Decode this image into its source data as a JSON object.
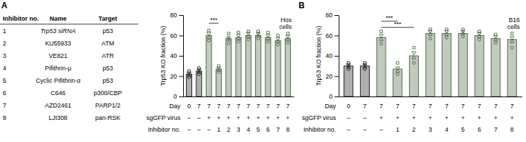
{
  "table": {
    "headers": [
      "Inhibitor no.",
      "Name",
      "Target"
    ],
    "rows": [
      [
        "1",
        "Trp53 siRNA",
        "p53"
      ],
      [
        "2",
        "KU55933",
        "ATM"
      ],
      [
        "3",
        "VE821",
        "ATR"
      ],
      [
        "4",
        "Pifithrin-μ",
        "p53"
      ],
      [
        "5",
        "Cyclic Pifithrin-α",
        "p53"
      ],
      [
        "6",
        "C646",
        "p300/CBP"
      ],
      [
        "7",
        "AZD2461",
        "PARP1/2"
      ],
      [
        "8",
        "LJI308",
        "pan-RSK"
      ]
    ]
  },
  "chart_data": [
    {
      "type": "bar",
      "title": "A",
      "y_label": "Trp53 KO fraction (%)",
      "annotation": "Hox\ncells",
      "values": [
        22,
        25,
        60,
        27,
        57,
        58,
        60,
        60,
        58,
        55,
        57
      ],
      "colors": [
        "#1a1a1a",
        "#1a1a1a",
        "#4a6741",
        "#4a6741",
        "#4a6741",
        "#4a6741",
        "#4a6741",
        "#4a6741",
        "#4a6741",
        "#4a6741",
        "#4a6741"
      ],
      "points": [
        [
          19,
          21,
          23,
          25
        ],
        [
          22,
          24,
          26,
          28
        ],
        [
          55,
          58,
          62,
          65
        ],
        [
          24,
          26,
          28,
          30
        ],
        [
          52,
          56,
          58,
          62
        ],
        [
          54,
          57,
          60,
          63
        ],
        [
          56,
          59,
          62,
          64
        ],
        [
          57,
          60,
          62,
          64
        ],
        [
          54,
          57,
          60,
          63
        ],
        [
          51,
          54,
          57,
          60
        ],
        [
          53,
          56,
          59,
          62
        ]
      ],
      "label_rows": [
        {
          "name": "Day",
          "labels": [
            "0",
            "7",
            "7",
            "7",
            "7",
            "7",
            "7",
            "7",
            "7",
            "7",
            "7"
          ]
        },
        {
          "name": "sgGFP virus",
          "labels": [
            "–",
            "–",
            "+",
            "+",
            "+",
            "+",
            "+",
            "+",
            "+",
            "+",
            "+"
          ]
        },
        {
          "name": "Inhibitor no.",
          "labels": [
            "–",
            "–",
            "–",
            "1",
            "2",
            "3",
            "4",
            "5",
            "6",
            "7",
            "8"
          ]
        }
      ],
      "significance": [
        {
          "x1": 2,
          "x2": 3,
          "y": 72,
          "text": "***"
        }
      ],
      "ylim": [
        0,
        80
      ],
      "yticks": [
        0,
        20,
        40,
        60,
        80
      ],
      "grid": false
    },
    {
      "type": "bar",
      "title": "B",
      "y_label": "Trp53 KO fraction (%)",
      "annotation": "B16\ncells",
      "values": [
        30,
        30,
        58,
        27,
        40,
        62,
        62,
        62,
        60,
        57,
        56
      ],
      "colors": [
        "#1a1a1a",
        "#1a1a1a",
        "#4a6741",
        "#4a6741",
        "#4a6741",
        "#4a6741",
        "#4a6741",
        "#4a6741",
        "#4a6741",
        "#4a6741",
        "#4a6741"
      ],
      "points": [
        [
          27,
          29,
          31,
          33
        ],
        [
          27,
          29,
          31,
          33
        ],
        [
          52,
          56,
          60,
          64
        ],
        [
          22,
          25,
          28,
          33
        ],
        [
          33,
          38,
          43,
          48
        ],
        [
          57,
          61,
          64,
          66
        ],
        [
          58,
          61,
          64,
          66
        ],
        [
          59,
          62,
          64,
          66
        ],
        [
          56,
          59,
          62,
          64
        ],
        [
          53,
          56,
          59,
          61
        ],
        [
          48,
          54,
          58,
          62
        ]
      ],
      "label_rows": [
        {
          "name": "Day",
          "labels": [
            "0",
            "7",
            "7",
            "7",
            "7",
            "7",
            "7",
            "7",
            "7",
            "7",
            "7"
          ]
        },
        {
          "name": "sgGFP virus",
          "labels": [
            "–",
            "–",
            "+",
            "+",
            "+",
            "+",
            "+",
            "+",
            "+",
            "+",
            "+"
          ]
        },
        {
          "name": "Inhibitor no.",
          "labels": [
            "–",
            "–",
            "–",
            "1",
            "2",
            "3",
            "4",
            "5",
            "6",
            "7",
            "8"
          ]
        }
      ],
      "significance": [
        {
          "x1": 2,
          "x2": 3,
          "y": 74,
          "text": "***"
        },
        {
          "x1": 2,
          "x2": 4,
          "y": 68,
          "text": "***"
        }
      ],
      "ylim": [
        0,
        80
      ],
      "yticks": [
        0,
        20,
        40,
        60,
        80
      ],
      "grid": false
    }
  ]
}
